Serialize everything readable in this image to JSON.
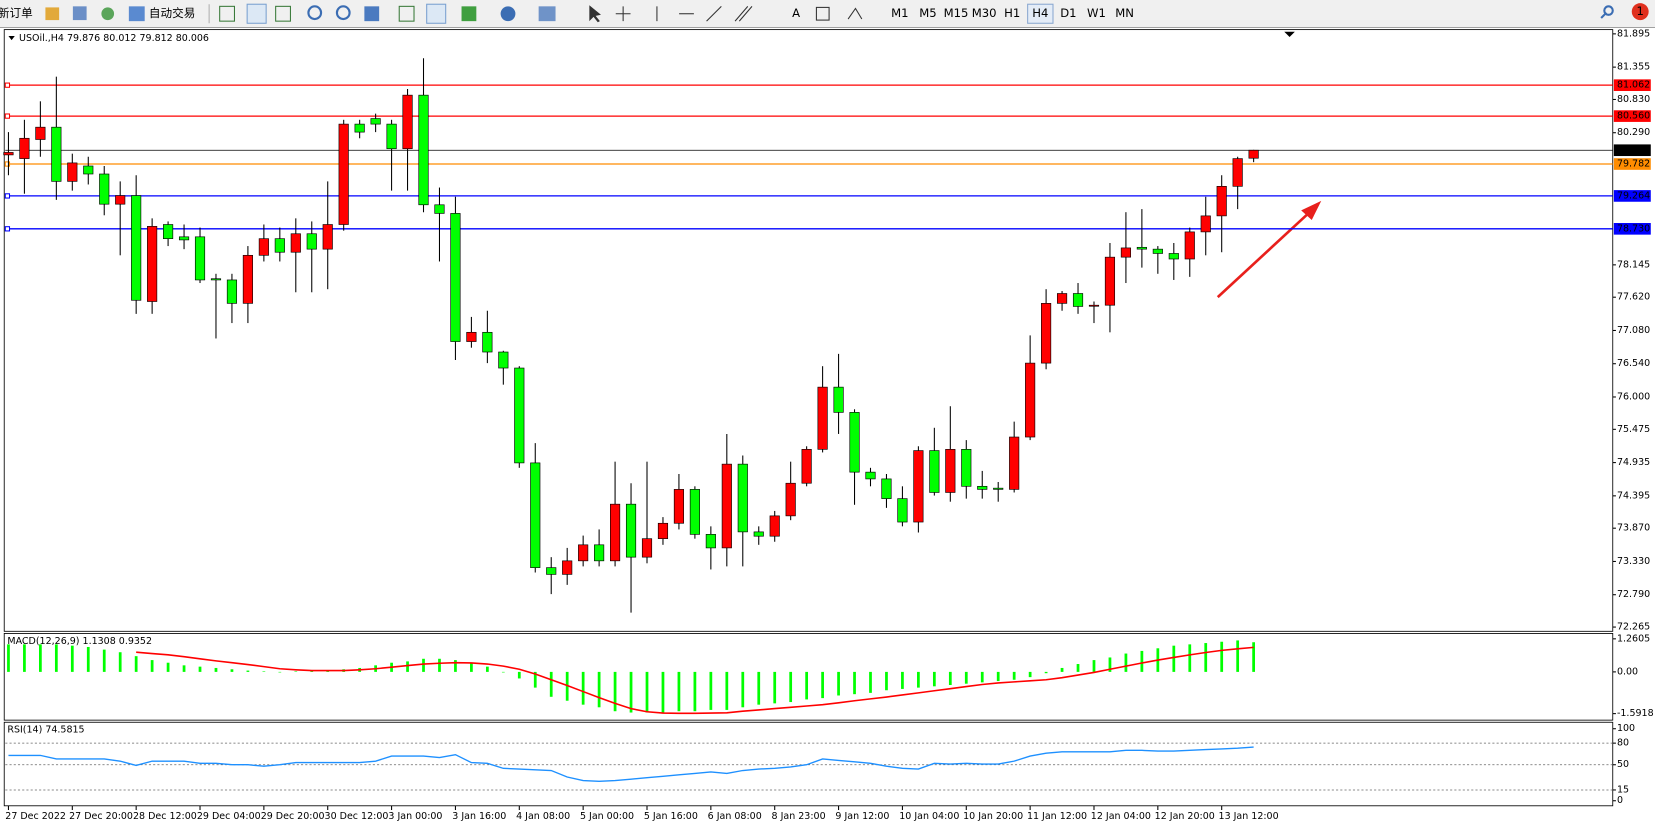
{
  "toolbar": {
    "new_order": "新订单",
    "auto_trading": "自动交易",
    "timeframes": [
      "M1",
      "M5",
      "M15",
      "M30",
      "H1",
      "H4",
      "D1",
      "W1",
      "MN"
    ],
    "active_timeframe": 5,
    "notifications": 1
  },
  "chart_data": [
    {
      "type": "candlestick",
      "title": "USOil.,H4",
      "categories": [
        "27 Dec 2022",
        null,
        null,
        null,
        "27 Dec 20:00",
        null,
        null,
        null,
        "28 Dec 12:00",
        null,
        null,
        null,
        "29 Dec 04:00",
        null,
        null,
        null,
        "29 Dec 20:00",
        null,
        null,
        null,
        "30 Dec 12:00",
        null,
        null,
        null,
        "3 Jan 00:00",
        null,
        null,
        null,
        "3 Jan 16:00",
        null,
        null,
        null,
        "4 Jan 08:00",
        null,
        null,
        null,
        "5 Jan 00:00",
        null,
        null,
        null,
        "5 Jan 16:00",
        null,
        null,
        null,
        "6 Jan 08:00",
        null,
        null,
        null,
        "8 Jan 23:00",
        null,
        null,
        null,
        "9 Jan 12:00",
        null,
        null,
        null,
        "10 Jan 04:00",
        null,
        null,
        null,
        "10 Jan 20:00",
        null,
        null,
        null,
        "11 Jan 12:00",
        null,
        null,
        null,
        "12 Jan 04:00",
        null,
        null,
        null,
        "12 Jan 20:00",
        null,
        null,
        null,
        "13 Jan 12:00",
        null,
        null
      ],
      "open": [
        79.93,
        79.87,
        80.18,
        80.38,
        79.5,
        79.75,
        79.62,
        79.13,
        79.27,
        77.55,
        78.8,
        78.6,
        78.6,
        77.92,
        77.9,
        77.52,
        78.3,
        78.57,
        78.35,
        78.65,
        78.4,
        78.8,
        80.43,
        80.52,
        80.43,
        80.03,
        80.9,
        79.12,
        78.98,
        76.9,
        77.05,
        76.73,
        76.47,
        74.93,
        73.23,
        73.12,
        73.34,
        73.6,
        73.34,
        74.26,
        73.4,
        73.7,
        73.95,
        74.5,
        73.77,
        73.55,
        74.91,
        73.81,
        73.74,
        74.07,
        74.6,
        75.15,
        76.16,
        75.75,
        74.78,
        74.67,
        74.35,
        73.97,
        75.13,
        74.45,
        75.15,
        74.55,
        74.52,
        74.5,
        75.35,
        76.55,
        77.52,
        77.68,
        77.48,
        77.49,
        78.27,
        78.43,
        78.4,
        78.33,
        78.24,
        78.68,
        78.94,
        79.42,
        79.876
      ],
      "high": [
        80.3,
        80.5,
        80.8,
        81.2,
        79.95,
        79.9,
        79.75,
        79.5,
        79.6,
        78.9,
        78.85,
        78.8,
        78.75,
        78.0,
        78.0,
        78.45,
        78.8,
        78.75,
        78.9,
        78.85,
        79.5,
        80.5,
        80.5,
        80.6,
        80.5,
        81.0,
        81.5,
        79.4,
        79.25,
        77.3,
        77.4,
        76.75,
        76.5,
        75.25,
        73.4,
        73.55,
        73.75,
        73.85,
        74.95,
        74.6,
        74.95,
        74.05,
        74.75,
        74.55,
        73.9,
        75.4,
        75.05,
        73.9,
        74.15,
        74.95,
        75.2,
        76.5,
        76.7,
        75.8,
        74.85,
        74.75,
        74.55,
        75.2,
        75.5,
        75.85,
        75.3,
        74.8,
        74.62,
        75.6,
        77.0,
        77.75,
        77.72,
        77.85,
        77.55,
        78.5,
        79.0,
        79.05,
        78.45,
        78.5,
        78.75,
        79.25,
        79.6,
        79.9,
        80.012
      ],
      "low": [
        79.6,
        79.3,
        79.9,
        79.2,
        79.35,
        79.45,
        78.95,
        78.3,
        77.35,
        77.35,
        78.45,
        78.4,
        77.85,
        76.95,
        77.2,
        77.2,
        78.2,
        78.2,
        77.7,
        77.7,
        77.75,
        78.7,
        80.2,
        80.3,
        79.35,
        79.35,
        79.0,
        78.2,
        76.6,
        76.8,
        76.55,
        76.2,
        74.85,
        73.15,
        72.8,
        72.95,
        73.25,
        73.25,
        73.25,
        72.5,
        73.3,
        73.6,
        73.85,
        73.7,
        73.2,
        73.25,
        73.25,
        73.6,
        73.65,
        74.0,
        74.55,
        75.1,
        75.4,
        74.25,
        74.55,
        74.2,
        73.9,
        73.8,
        74.4,
        74.3,
        74.35,
        74.35,
        74.3,
        74.45,
        75.3,
        76.45,
        77.4,
        77.35,
        77.2,
        77.05,
        77.85,
        78.1,
        78.0,
        77.9,
        77.95,
        78.3,
        78.35,
        79.05,
        79.812
      ],
      "close": [
        79.97,
        80.2,
        80.38,
        79.5,
        79.8,
        79.62,
        79.13,
        79.27,
        77.57,
        78.77,
        78.57,
        78.55,
        77.9,
        77.9,
        77.52,
        78.3,
        78.57,
        78.35,
        78.65,
        78.4,
        78.8,
        80.43,
        80.3,
        80.43,
        80.03,
        80.9,
        79.12,
        78.98,
        76.9,
        77.05,
        76.73,
        76.47,
        74.93,
        73.23,
        73.12,
        73.34,
        73.6,
        73.34,
        74.26,
        73.4,
        73.7,
        73.95,
        74.5,
        73.77,
        73.55,
        74.91,
        73.81,
        73.74,
        74.07,
        74.6,
        75.15,
        76.16,
        75.75,
        74.78,
        74.67,
        74.35,
        73.97,
        75.13,
        74.45,
        75.15,
        74.55,
        74.5,
        74.5,
        75.35,
        76.55,
        77.52,
        77.68,
        77.47,
        77.49,
        78.27,
        78.42,
        78.4,
        78.33,
        78.24,
        78.68,
        78.94,
        79.42,
        79.87,
        80.006
      ],
      "bull_color": "#ff0000",
      "bear_color": "#00ff00",
      "ylim": [
        72.196,
        81.964
      ],
      "yticks": [
        81.895,
        81.355,
        {
          "value": 80.83,
          "label": "80.830"
        },
        {
          "value": 80.29,
          "label": "80.290"
        },
        78.145,
        {
          "value": 77.62,
          "label": "77.620"
        },
        {
          "value": 77.08,
          "label": "77.080"
        },
        {
          "value": 76.54,
          "label": "76.540"
        },
        {
          "value": 76,
          "label": "76.000"
        },
        75.475,
        74.935,
        74.395,
        {
          "value": 73.87,
          "label": "73.870"
        },
        {
          "value": 73.33,
          "label": "73.330"
        },
        {
          "value": 72.79,
          "label": "72.790"
        },
        72.265
      ],
      "levels": [
        {
          "value": 81.062,
          "label": "81.062",
          "color": "#ff0000"
        },
        {
          "value": 80.56,
          "label": "80.560",
          "color": "#ff0000"
        },
        {
          "value": 79.782,
          "label": "79.782",
          "color": "#ff8c00"
        },
        {
          "value": 79.264,
          "label": "79.264",
          "color": "#0000ff"
        },
        {
          "value": 78.73,
          "label": "78.730",
          "color": "#0000ff"
        }
      ]
    },
    {
      "type": "macd",
      "title": "MACD(12,26,9)",
      "histogram": [
        1.05,
        1.05,
        1.05,
        1.05,
        1.0,
        0.95,
        0.85,
        0.75,
        0.6,
        0.45,
        0.35,
        0.25,
        0.2,
        0.15,
        0.1,
        0.05,
        0.02,
        -0.02,
        0.02,
        0.05,
        0.05,
        0.1,
        0.15,
        0.25,
        0.35,
        0.4,
        0.5,
        0.5,
        0.45,
        0.35,
        0.2,
        0.0,
        -0.25,
        -0.6,
        -0.95,
        -1.1,
        -1.25,
        -1.35,
        -1.5,
        -1.55,
        -1.55,
        -1.55,
        -1.5,
        -1.5,
        -1.45,
        -1.45,
        -1.35,
        -1.25,
        -1.2,
        -1.15,
        -1.05,
        -1.0,
        -0.9,
        -0.85,
        -0.8,
        -0.7,
        -0.65,
        -0.6,
        -0.55,
        -0.5,
        -0.45,
        -0.4,
        -0.35,
        -0.3,
        -0.2,
        -0.05,
        0.15,
        0.3,
        0.45,
        0.55,
        0.7,
        0.8,
        0.9,
        1.0,
        1.05,
        1.1,
        1.15,
        1.2,
        1.1308
      ],
      "signal": [
        null,
        null,
        null,
        null,
        null,
        null,
        null,
        null,
        0.75,
        0.7,
        0.65,
        0.58,
        0.5,
        0.42,
        0.35,
        0.28,
        0.2,
        0.12,
        0.08,
        0.05,
        0.05,
        0.05,
        0.08,
        0.12,
        0.18,
        0.24,
        0.3,
        0.33,
        0.35,
        0.34,
        0.3,
        0.22,
        0.1,
        -0.08,
        -0.3,
        -0.52,
        -0.75,
        -0.98,
        -1.2,
        -1.4,
        -1.52,
        -1.57,
        -1.58,
        -1.58,
        -1.57,
        -1.56,
        -1.5,
        -1.45,
        -1.4,
        -1.35,
        -1.3,
        -1.25,
        -1.18,
        -1.1,
        -1.03,
        -0.96,
        -0.88,
        -0.8,
        -0.72,
        -0.64,
        -0.56,
        -0.48,
        -0.42,
        -0.38,
        -0.34,
        -0.3,
        -0.22,
        -0.12,
        -0.02,
        0.1,
        0.22,
        0.34,
        0.45,
        0.55,
        0.65,
        0.74,
        0.82,
        0.88,
        0.9352
      ],
      "hist_color": "#00ff00",
      "signal_color": "#ff0000",
      "ylim": [
        -1.84,
        1.467
      ],
      "yticks": [
        1.2605,
        {
          "value": 0,
          "label": "0.00"
        },
        -1.5918
      ]
    },
    {
      "type": "rsi",
      "title": "RSI(14)",
      "values": [
        63,
        63,
        63,
        58,
        58,
        58,
        58,
        55,
        49,
        55,
        55,
        55,
        52,
        52,
        50,
        50,
        48,
        50,
        53,
        53,
        53,
        53,
        53,
        55,
        62,
        62,
        62,
        60,
        64,
        53,
        52,
        45,
        44,
        43,
        42,
        33,
        28,
        27,
        28,
        30,
        32,
        34,
        36,
        38,
        40,
        38,
        42,
        44,
        45,
        47,
        50,
        58,
        56,
        54,
        52,
        48,
        45,
        44,
        52,
        51,
        52,
        51,
        51,
        55,
        62,
        66,
        68,
        68,
        68,
        68,
        70,
        70,
        69,
        69,
        70,
        71,
        72,
        73,
        74.5815
      ],
      "color": "#1e90ff",
      "ylim": [
        -7,
        109
      ],
      "yticks": [
        100,
        80,
        50,
        15,
        0
      ],
      "levels": [
        80,
        50,
        15
      ]
    }
  ]
}
